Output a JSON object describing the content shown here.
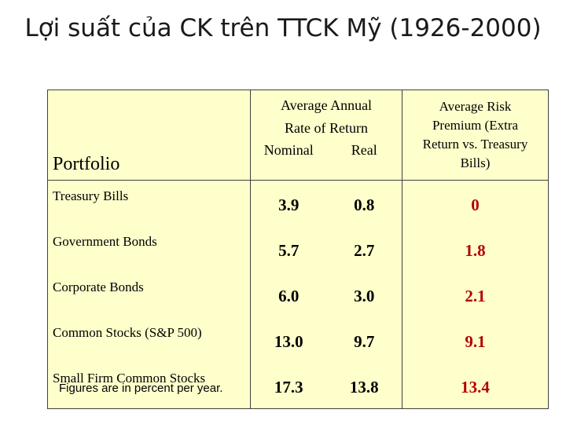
{
  "title": "Lợi suất của CK trên TTCK Mỹ (1926-2000)",
  "table": {
    "header": {
      "portfolio": "Portfolio",
      "annual_line1": "Average Annual",
      "annual_line2": "Rate of Return",
      "nominal": "Nominal",
      "real": "Real",
      "premium_line1": "Average Risk",
      "premium_line2": "Premium (Extra",
      "premium_line3": "Return vs. Treasury",
      "premium_line4": "Bills)"
    },
    "rows": [
      {
        "portfolio": "Treasury Bills",
        "nominal": "3.9",
        "real": "0.8",
        "premium": "0"
      },
      {
        "portfolio": "Government Bonds",
        "nominal": "5.7",
        "real": "2.7",
        "premium": "1.8"
      },
      {
        "portfolio": "Corporate Bonds",
        "nominal": "6.0",
        "real": "3.0",
        "premium": "2.1"
      },
      {
        "portfolio": "Common Stocks (S&P 500)",
        "nominal": "13.0",
        "real": "9.7",
        "premium": "9.1"
      },
      {
        "portfolio": "Small Firm Common Stocks",
        "nominal": "17.3",
        "real": "13.8",
        "premium": "13.4"
      }
    ]
  },
  "footnote": "Figures are in percent per year.",
  "colors": {
    "table_background": "#ffffcc",
    "premium_values": "#b30000"
  }
}
